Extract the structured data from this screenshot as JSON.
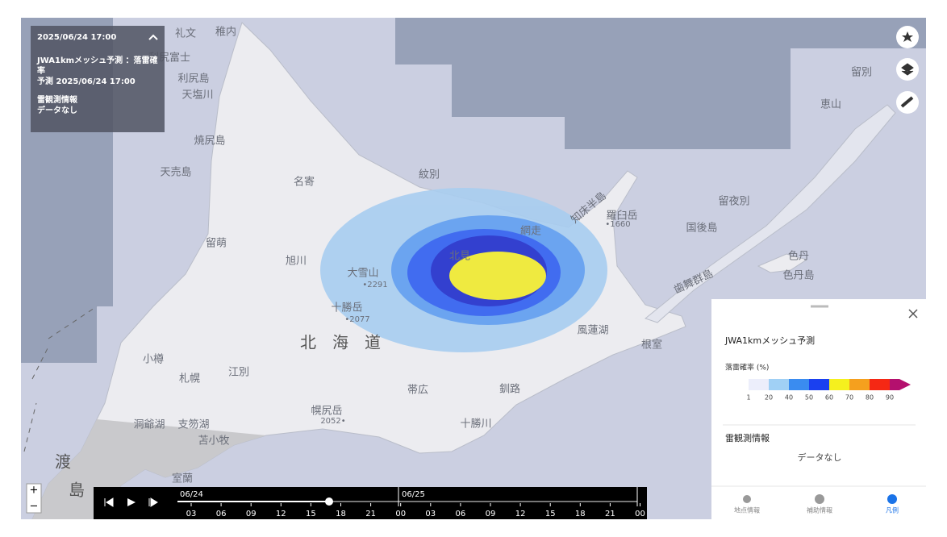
{
  "info_panel": {
    "datetime": "2025/06/24 17:00",
    "product": "JWA1kmメッシュ予測 ：落雷確率",
    "forecast": "予測 2025/06/24 17:00",
    "obs_title": "雷観測情報",
    "obs_value": "データなし"
  },
  "map_labels": [
    "稚内",
    "礼文",
    "利尻富士",
    "利尻島",
    "天塩川",
    "焼尻島",
    "天売島",
    "名寄",
    "紋別",
    "留萌",
    "旭川",
    "大雪山",
    "•2291",
    "北見",
    "網走",
    "知床半島",
    "羅臼岳",
    "•1660",
    "十勝岳",
    "•2077",
    "北　海　道",
    "風蓮湖",
    "根室",
    "札幌",
    "江別",
    "小樽",
    "帯広",
    "釧路",
    "十勝川",
    "幌尻岳",
    "2052•",
    "苫小牧",
    "室蘭",
    "渡",
    "島",
    "色丹",
    "色丹島",
    "留夜別",
    "国後島",
    "留別",
    "歯舞群島",
    "支笏湖",
    "洞爺湖",
    "恵山"
  ],
  "timeline": {
    "dates": [
      "06/24",
      "06/25"
    ],
    "hours": [
      "03",
      "06",
      "09",
      "12",
      "15",
      "18",
      "21",
      "00",
      "03",
      "06",
      "09",
      "12",
      "15",
      "18",
      "21",
      "00"
    ]
  },
  "zoom": {
    "in": "+",
    "out": "−"
  },
  "legend": {
    "title": "JWA1kmメッシュ予測",
    "scale_title": "落雷確率 (%)",
    "ticks": [
      1,
      20,
      40,
      50,
      60,
      70,
      80,
      90
    ],
    "colors": [
      "#eceefb",
      "#a0d0f5",
      "#3a8cf0",
      "#1a40f0",
      "#f5f01e",
      "#f5a01e",
      "#f52814",
      "#b4106e"
    ],
    "obs_title": "雷観測情報",
    "obs_value": "データなし"
  },
  "tabs": [
    "地点情報",
    "補助情報",
    "凡例"
  ]
}
